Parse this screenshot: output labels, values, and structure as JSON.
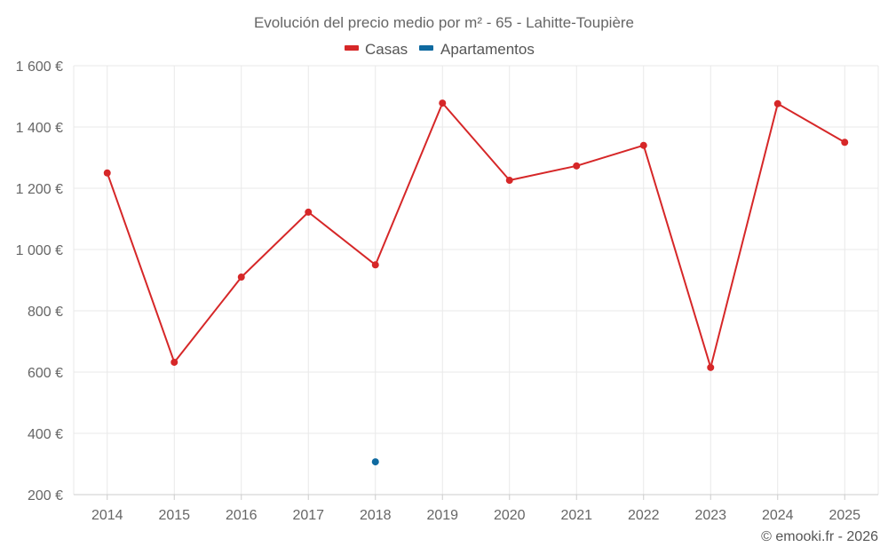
{
  "chart_data": {
    "type": "line",
    "title": "Evolución del precio medio por m² - 65 - Lahitte-Toupière",
    "categories": [
      "2014",
      "2015",
      "2016",
      "2017",
      "2018",
      "2019",
      "2020",
      "2021",
      "2022",
      "2023",
      "2024",
      "2025"
    ],
    "ylim": [
      200,
      1600
    ],
    "yticks": [
      200,
      400,
      600,
      800,
      1000,
      1200,
      1400,
      1600
    ],
    "ytick_labels": [
      "200 €",
      "400 €",
      "600 €",
      "800 €",
      "1 000 €",
      "1 200 €",
      "1 400 €",
      "1 600 €"
    ],
    "series": [
      {
        "name": "Casas",
        "color": "#d62728",
        "values": [
          1250,
          632,
          910,
          1122,
          950,
          1478,
          1226,
          1273,
          1340,
          615,
          1476,
          1350
        ]
      },
      {
        "name": "Apartamentos",
        "color": "#0f6aa0",
        "values": [
          null,
          null,
          null,
          null,
          307,
          null,
          null,
          null,
          null,
          null,
          null,
          null
        ]
      }
    ],
    "legend_position": "top-center",
    "grid": true
  },
  "credit": "© emooki.fr - 2026"
}
